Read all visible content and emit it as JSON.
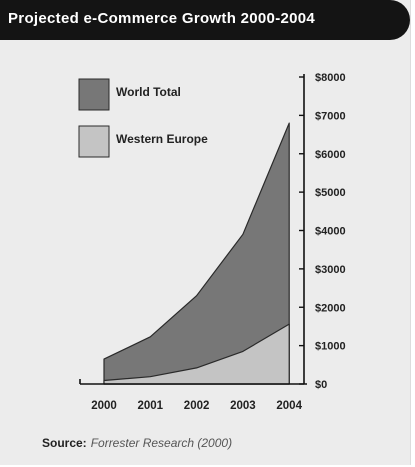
{
  "header": {
    "title": "Projected e-Commerce Growth 2000-2004"
  },
  "footer": {
    "source_label": "Source:",
    "source_value": "Forrester Research (2000)"
  },
  "chart_data": {
    "type": "area",
    "title": "Projected e-Commerce Growth 2000-2004",
    "x": [
      "2000",
      "2001",
      "2002",
      "2003",
      "2004"
    ],
    "series": [
      {
        "name": "World Total",
        "values": [
          650,
          1230,
          2300,
          3900,
          6800
        ],
        "color": "#777777"
      },
      {
        "name": "Western Europe",
        "values": [
          90,
          190,
          420,
          850,
          1560
        ],
        "color": "#c4c4c4"
      }
    ],
    "ylim": [
      0,
      8000
    ],
    "yticks": [
      0,
      1000,
      2000,
      3000,
      4000,
      5000,
      6000,
      7000,
      8000
    ],
    "ytick_labels": [
      "$0",
      "$1000",
      "$2000",
      "$3000",
      "$4000",
      "$5000",
      "$6000",
      "$7000",
      "$8000"
    ],
    "y_axis_side": "right",
    "legend_position": "top-left",
    "grid": false,
    "overlapping": true
  }
}
